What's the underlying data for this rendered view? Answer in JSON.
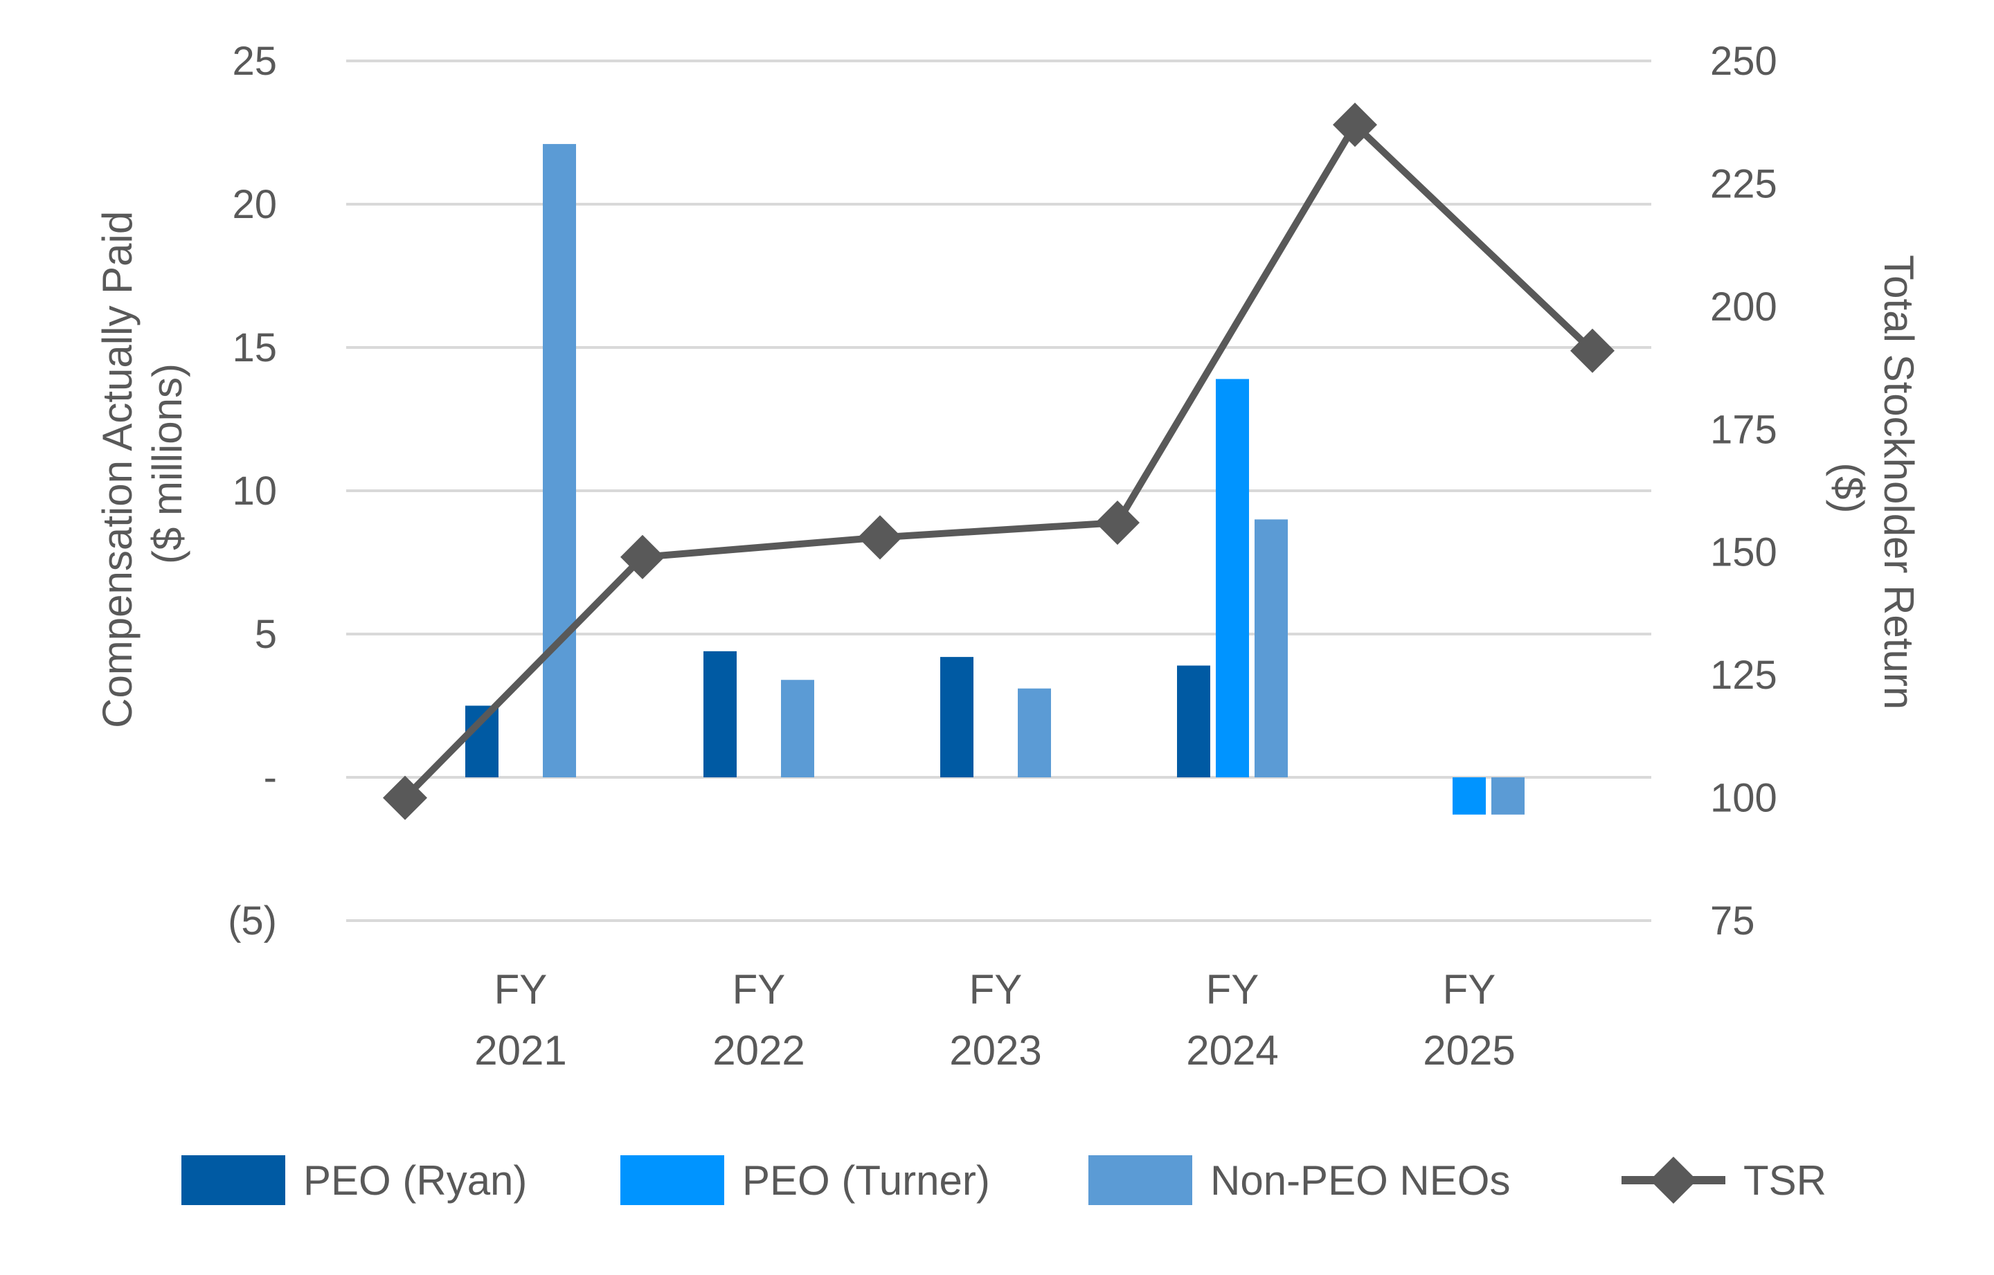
{
  "chart_data": {
    "type": "bar",
    "categories": [
      [
        "FY",
        "2021"
      ],
      [
        "FY",
        "2022"
      ],
      [
        "FY",
        "2023"
      ],
      [
        "FY",
        "2024"
      ],
      [
        "FY",
        "2025"
      ]
    ],
    "y_left": {
      "title_lines": [
        "Compensation Actually Paid",
        "($ millions)"
      ],
      "ylim": [
        -5,
        25
      ],
      "ticks": [
        {
          "v": -5,
          "label": "(5)"
        },
        {
          "v": 0,
          "label": "-"
        },
        {
          "v": 5,
          "label": "5"
        },
        {
          "v": 10,
          "label": "10"
        },
        {
          "v": 15,
          "label": "15"
        },
        {
          "v": 20,
          "label": "20"
        },
        {
          "v": 25,
          "label": "25"
        }
      ]
    },
    "y_right": {
      "title_lines": [
        "Total Stockholder Return",
        "($)"
      ],
      "ylim": [
        75,
        250
      ],
      "ticks": [
        75,
        100,
        125,
        150,
        175,
        200,
        225,
        250
      ]
    },
    "bar_series": [
      {
        "name": "PEO (Ryan)",
        "color": "#005aa3",
        "values": [
          2.5,
          4.4,
          4.2,
          3.9,
          null
        ]
      },
      {
        "name": "PEO (Turner)",
        "color": "#0094ff",
        "values": [
          null,
          null,
          null,
          13.9,
          -1.3
        ]
      },
      {
        "name": "Non-PEO NEOs",
        "color": "#5b9bd5",
        "values": [
          22.1,
          3.4,
          3.1,
          9.0,
          -1.3
        ]
      }
    ],
    "line_series": {
      "name": "TSR",
      "color": "#595959",
      "points": [
        100,
        149,
        153,
        156,
        237,
        191
      ]
    },
    "grid": true,
    "legend_position": "bottom"
  }
}
